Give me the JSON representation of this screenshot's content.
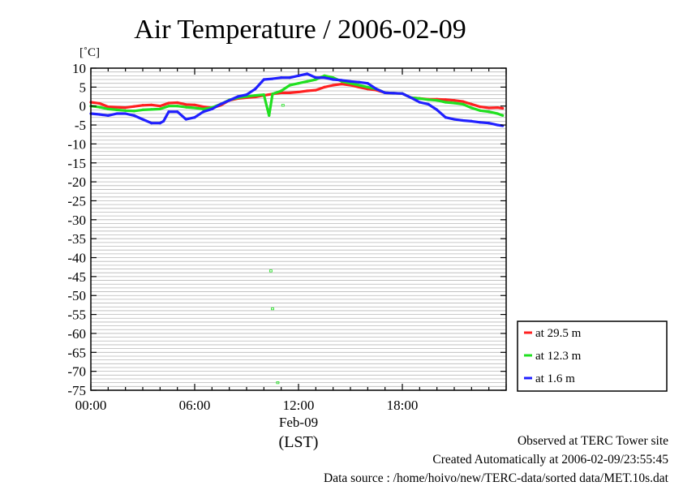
{
  "chart_data": {
    "type": "line",
    "title": "Air Temperature / 2006-02-09",
    "ylabel": "[˚C]",
    "date_label": "Feb-09",
    "xlabel": "(LST)",
    "ylim": [
      -75,
      10
    ],
    "xlim": [
      "00:00",
      "24:00"
    ],
    "yticks": [
      10,
      5,
      0,
      -5,
      -10,
      -15,
      -20,
      -25,
      -30,
      -35,
      -40,
      -45,
      -50,
      -55,
      -60,
      -65,
      -70,
      -75
    ],
    "ytick_labels": [
      "10",
      "5",
      "0",
      "-5",
      "-10",
      "-15",
      "-20",
      "-25",
      "-30",
      "-35",
      "-40",
      "-45",
      "-50",
      "-55",
      "-60",
      "-65",
      "-70",
      "-75"
    ],
    "xticks": [
      0,
      6,
      12,
      18
    ],
    "xtick_labels": [
      "00:00",
      "06:00",
      "12:00",
      "18:00"
    ],
    "grid": "horizontal",
    "legend_position": "bottom-right, outside plot",
    "series": [
      {
        "name": "at 29.5 m",
        "color": "#ff2020",
        "x": [
          0,
          0.5,
          1,
          1.5,
          2,
          2.5,
          3,
          3.5,
          4,
          4.5,
          5,
          5.5,
          6,
          6.5,
          7,
          7.5,
          8,
          8.5,
          9,
          9.5,
          10,
          10.5,
          11,
          11.5,
          12,
          12.5,
          13,
          13.5,
          14,
          14.5,
          15,
          15.5,
          16,
          16.5,
          17,
          17.5,
          18,
          18.5,
          19,
          19.5,
          20,
          20.5,
          21,
          21.5,
          22,
          22.5,
          23,
          23.5,
          23.8
        ],
        "y": [
          1.0,
          0.7,
          -0.2,
          -0.3,
          -0.4,
          -0.1,
          0.2,
          0.3,
          0.0,
          0.8,
          0.9,
          0.4,
          0.3,
          -0.2,
          -0.5,
          0.2,
          1.5,
          2.0,
          2.2,
          2.4,
          2.8,
          3.2,
          3.5,
          3.5,
          3.7,
          4.0,
          4.2,
          5.0,
          5.5,
          5.8,
          5.5,
          5.0,
          4.5,
          4.2,
          3.5,
          3.4,
          3.3,
          2.2,
          2.0,
          1.8,
          1.8,
          1.7,
          1.5,
          1.2,
          0.5,
          -0.2,
          -0.5,
          -0.4,
          -0.6
        ]
      },
      {
        "name": "at 12.3 m",
        "color": "#20e020",
        "x": [
          0,
          0.5,
          1,
          1.5,
          2,
          2.5,
          3,
          3.5,
          4,
          4.5,
          5,
          5.5,
          6,
          6.5,
          7,
          7.5,
          8,
          8.5,
          9,
          9.5,
          10,
          10.3,
          10.5,
          11,
          11.5,
          12,
          12.5,
          13,
          13.5,
          14,
          14.5,
          15,
          15.5,
          16,
          16.5,
          17,
          17.5,
          18,
          18.5,
          19,
          19.5,
          20,
          20.5,
          21,
          21.5,
          22,
          22.5,
          23,
          23.5,
          23.8
        ],
        "y": [
          0.0,
          -0.3,
          -0.8,
          -1.0,
          -1.2,
          -1.3,
          -1.0,
          -0.9,
          -0.8,
          0.0,
          0.0,
          -0.3,
          -0.5,
          -0.8,
          -0.4,
          0.5,
          1.6,
          2.2,
          2.5,
          2.8,
          3.0,
          -2.5,
          3.2,
          4.0,
          5.5,
          6.0,
          6.5,
          7.0,
          8.0,
          7.5,
          6.5,
          6.0,
          5.5,
          5.0,
          4.5,
          3.5,
          3.4,
          3.3,
          2.2,
          2.0,
          1.7,
          1.5,
          1.0,
          0.8,
          0.5,
          -0.5,
          -1.2,
          -1.5,
          -2.0,
          -2.5
        ]
      },
      {
        "name": "at 1.6 m",
        "color": "#2020ff",
        "x": [
          0,
          0.5,
          1,
          1.5,
          2,
          2.5,
          3,
          3.5,
          4,
          4.2,
          4.5,
          5,
          5.5,
          6,
          6.5,
          7,
          7.5,
          8,
          8.5,
          9,
          9.5,
          10,
          10.5,
          11,
          11.5,
          12,
          12.5,
          13,
          13.5,
          14,
          14.5,
          15,
          15.5,
          16,
          16.5,
          17,
          17.5,
          18,
          18.5,
          19,
          19.5,
          20,
          20.5,
          21,
          21.5,
          22,
          22.5,
          23,
          23.5,
          23.8
        ],
        "y": [
          -2.0,
          -2.2,
          -2.5,
          -2.0,
          -2.0,
          -2.5,
          -3.5,
          -4.5,
          -4.5,
          -4.0,
          -1.5,
          -1.5,
          -3.5,
          -3.0,
          -1.5,
          -0.8,
          0.5,
          1.5,
          2.5,
          3.0,
          4.5,
          7.0,
          7.2,
          7.5,
          7.5,
          8.0,
          8.5,
          7.5,
          7.5,
          7.0,
          6.8,
          6.5,
          6.3,
          6.0,
          4.5,
          3.5,
          3.4,
          3.3,
          2.2,
          1.0,
          0.5,
          -1.0,
          -3.0,
          -3.5,
          -3.8,
          -4.0,
          -4.3,
          -4.5,
          -5.0,
          -5.2
        ]
      }
    ],
    "outliers": [
      {
        "series": "at 12.3 m",
        "x": [
          10.4,
          10.5,
          10.8,
          11.1
        ],
        "y": [
          -43.5,
          -53.5,
          -73.0,
          0.2
        ]
      }
    ]
  },
  "footer": {
    "site": "Observed at TERC Tower site",
    "created": "Created Automatically at 2006-02-09/23:55:45",
    "source": "Data source : /home/hoivo/new/TERC-data/sorted  data/MET.10s.dat"
  }
}
